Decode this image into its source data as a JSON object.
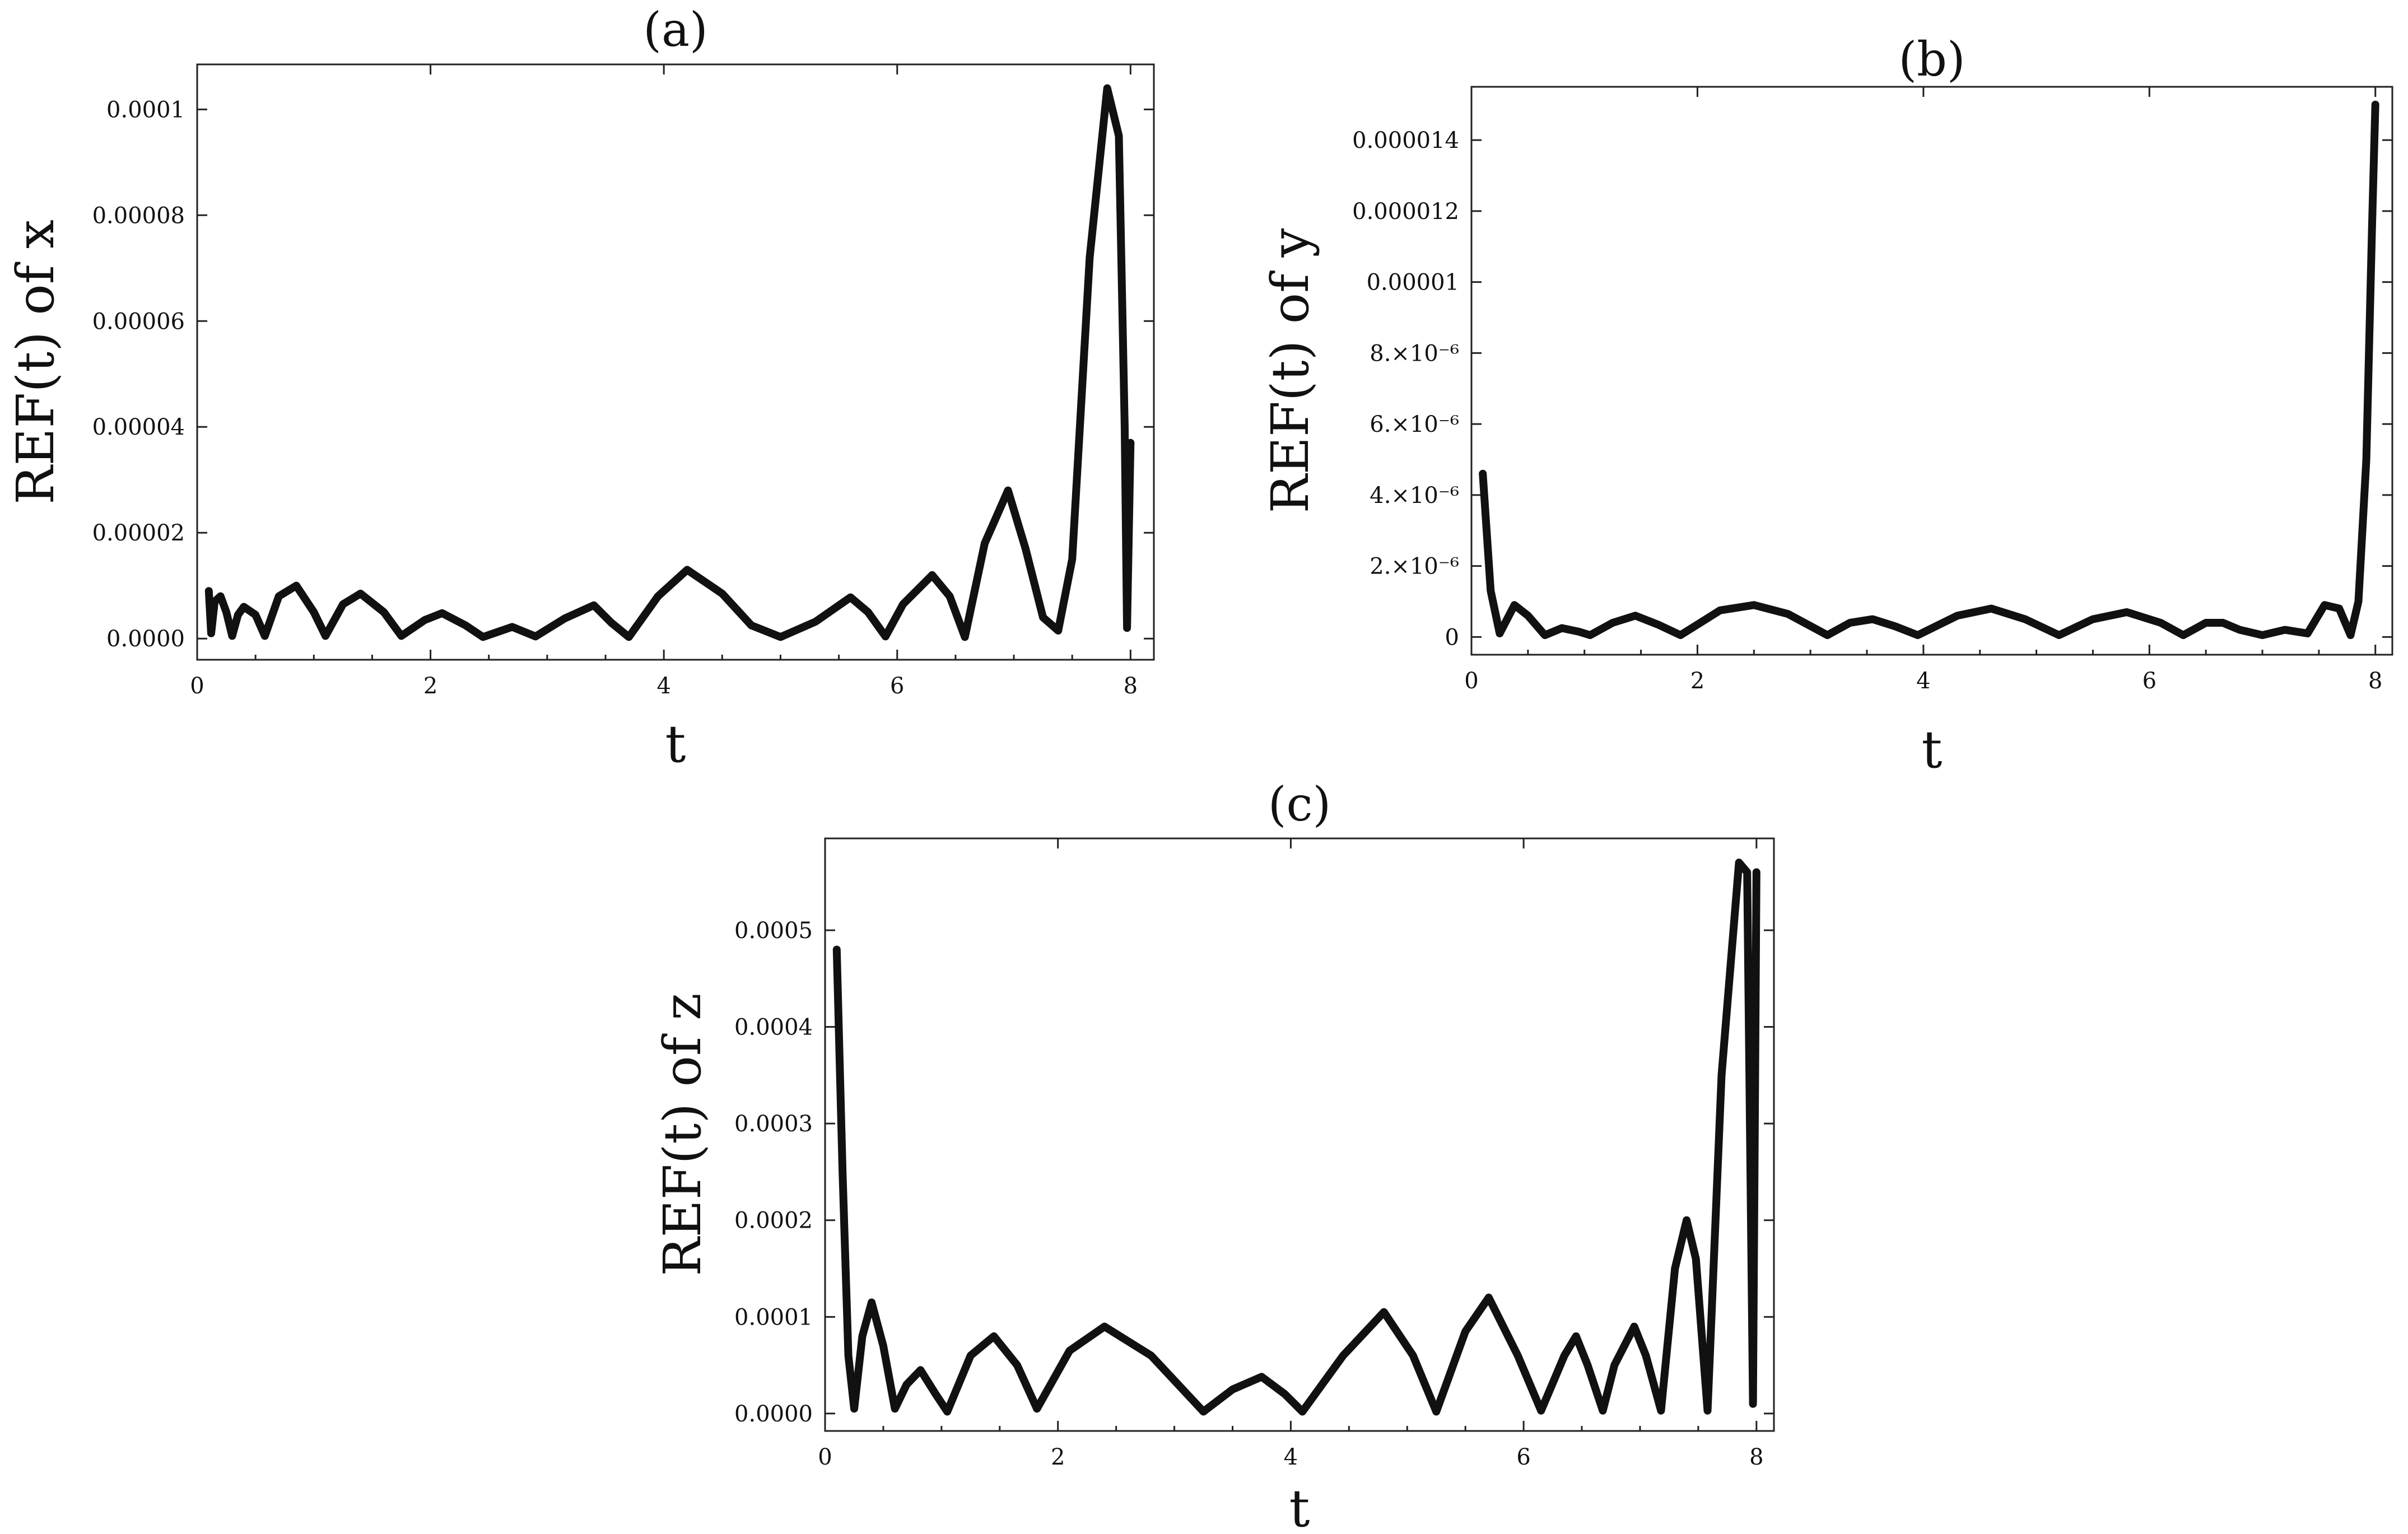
{
  "chart_data": [
    {
      "type": "line",
      "title": "(a)",
      "xlabel": "t",
      "ylabel": "REF(t) of x",
      "xlim": [
        0,
        8.2
      ],
      "ylim": [
        -4e-06,
        0.0001085
      ],
      "xticks": [
        {
          "value": 0,
          "label": "0"
        },
        {
          "value": 2,
          "label": "2"
        },
        {
          "value": 4,
          "label": "4"
        },
        {
          "value": 6,
          "label": "6"
        },
        {
          "value": 8,
          "label": "8"
        }
      ],
      "yticks": [
        {
          "value": 0,
          "label": "0.0000"
        },
        {
          "value": 2e-05,
          "label": "0.00002"
        },
        {
          "value": 4e-05,
          "label": "0.00004"
        },
        {
          "value": 6e-05,
          "label": "0.00006"
        },
        {
          "value": 8e-05,
          "label": "0.00008"
        },
        {
          "value": 0.0001,
          "label": "0.0001"
        }
      ],
      "grid": false,
      "series": [
        {
          "x": [
            0.1,
            0.12,
            0.15,
            0.2,
            0.25,
            0.3,
            0.35,
            0.4,
            0.5,
            0.58,
            0.7,
            0.85,
            1.0,
            1.1,
            1.25,
            1.4,
            1.6,
            1.75,
            1.95,
            2.1,
            2.3,
            2.45,
            2.7,
            2.9,
            3.15,
            3.4,
            3.55,
            3.7,
            3.95,
            4.2,
            4.5,
            4.75,
            5.0,
            5.3,
            5.6,
            5.75,
            5.9,
            6.05,
            6.3,
            6.45,
            6.58,
            6.75,
            6.95,
            7.1,
            7.25,
            7.38,
            7.5,
            7.65,
            7.8,
            7.9,
            7.95,
            7.97,
            8.0
          ],
          "y": [
            9e-06,
            1e-06,
            7e-06,
            8e-06,
            5e-06,
            5e-07,
            4.5e-06,
            6e-06,
            4.5e-06,
            5e-07,
            8e-06,
            1e-05,
            5e-06,
            5e-07,
            6.5e-06,
            8.5e-06,
            5e-06,
            5e-07,
            3.5e-06,
            4.8e-06,
            2.5e-06,
            3e-07,
            2.2e-06,
            4e-07,
            3.8e-06,
            6.3e-06,
            3e-06,
            3e-07,
            8e-06,
            1.3e-05,
            8.5e-06,
            2.5e-06,
            3e-07,
            3.2e-06,
            7.8e-06,
            5e-06,
            4e-07,
            6.5e-06,
            1.2e-05,
            8e-06,
            3e-07,
            1.8e-05,
            2.8e-05,
            1.7e-05,
            4e-06,
            1.5e-06,
            1.5e-05,
            7.2e-05,
            0.000104,
            9.5e-05,
            4e-05,
            2e-06,
            3.7e-05
          ]
        }
      ]
    },
    {
      "type": "line",
      "title": "(b)",
      "xlabel": "t",
      "ylabel": "REF(t) of y",
      "xlim": [
        0,
        8.15
      ],
      "ylim": [
        -5e-07,
        1.55e-05
      ],
      "xticks": [
        {
          "value": 0,
          "label": "0"
        },
        {
          "value": 2,
          "label": "2"
        },
        {
          "value": 4,
          "label": "4"
        },
        {
          "value": 6,
          "label": "6"
        },
        {
          "value": 8,
          "label": "8"
        }
      ],
      "yticks": [
        {
          "value": 0,
          "label": "0"
        },
        {
          "value": 2e-06,
          "label": "2.×10⁻⁶"
        },
        {
          "value": 4e-06,
          "label": "4.×10⁻⁶"
        },
        {
          "value": 6e-06,
          "label": "6.×10⁻⁶"
        },
        {
          "value": 8e-06,
          "label": "8.×10⁻⁶"
        },
        {
          "value": 1e-05,
          "label": "0.00001"
        },
        {
          "value": 1.2e-05,
          "label": "0.000012"
        },
        {
          "value": 1.4e-05,
          "label": "0.000014"
        }
      ],
      "grid": false,
      "series": [
        {
          "x": [
            0.1,
            0.17,
            0.25,
            0.38,
            0.5,
            0.65,
            0.8,
            0.95,
            1.05,
            1.25,
            1.45,
            1.65,
            1.85,
            2.2,
            2.5,
            2.8,
            3.15,
            3.35,
            3.55,
            3.75,
            3.95,
            4.3,
            4.6,
            4.9,
            5.2,
            5.5,
            5.8,
            6.1,
            6.3,
            6.5,
            6.65,
            6.8,
            7.0,
            7.2,
            7.4,
            7.55,
            7.68,
            7.78,
            7.85,
            7.92,
            7.97,
            8.0
          ],
          "y": [
            4.6e-06,
            1.3e-06,
            1e-07,
            9e-07,
            6e-07,
            5e-08,
            2.5e-07,
            1.5e-07,
            5e-08,
            4e-07,
            6e-07,
            3.5e-07,
            5e-08,
            7.5e-07,
            9e-07,
            6.5e-07,
            5e-08,
            4e-07,
            5e-07,
            3e-07,
            5e-08,
            6e-07,
            8e-07,
            5e-07,
            5e-08,
            5e-07,
            7e-07,
            4e-07,
            5e-08,
            4e-07,
            4e-07,
            2e-07,
            5e-08,
            2e-07,
            1e-07,
            9e-07,
            8e-07,
            5e-08,
            1e-06,
            5e-06,
            1.15e-05,
            1.5e-05
          ]
        }
      ]
    },
    {
      "type": "line",
      "title": "(c)",
      "xlabel": "t",
      "ylabel": "REF(t) of z",
      "xlim": [
        0,
        8.15
      ],
      "ylim": [
        -1.8e-05,
        0.000595
      ],
      "xticks": [
        {
          "value": 0,
          "label": "0"
        },
        {
          "value": 2,
          "label": "2"
        },
        {
          "value": 4,
          "label": "4"
        },
        {
          "value": 6,
          "label": "6"
        },
        {
          "value": 8,
          "label": "8"
        }
      ],
      "yticks": [
        {
          "value": 0,
          "label": "0.0000"
        },
        {
          "value": 0.0001,
          "label": "0.0001"
        },
        {
          "value": 0.0002,
          "label": "0.0002"
        },
        {
          "value": 0.0003,
          "label": "0.0003"
        },
        {
          "value": 0.0004,
          "label": "0.0004"
        },
        {
          "value": 0.0005,
          "label": "0.0005"
        }
      ],
      "grid": false,
      "series": [
        {
          "x": [
            0.1,
            0.15,
            0.2,
            0.25,
            0.32,
            0.4,
            0.5,
            0.6,
            0.7,
            0.82,
            0.95,
            1.05,
            1.25,
            1.45,
            1.65,
            1.82,
            2.1,
            2.4,
            2.8,
            3.25,
            3.5,
            3.75,
            3.95,
            4.1,
            4.45,
            4.8,
            5.05,
            5.25,
            5.5,
            5.7,
            5.95,
            6.15,
            6.35,
            6.45,
            6.55,
            6.68,
            6.78,
            6.95,
            7.05,
            7.18,
            7.3,
            7.4,
            7.48,
            7.58,
            7.7,
            7.85,
            7.92,
            7.97,
            8.0
          ],
          "y": [
            0.00048,
            0.00025,
            6e-05,
            5e-06,
            8e-05,
            0.000115,
            7e-05,
            5e-06,
            3e-05,
            4.5e-05,
            2e-05,
            2e-06,
            6e-05,
            8e-05,
            5e-05,
            5e-06,
            6.5e-05,
            9e-05,
            6e-05,
            2e-06,
            2.5e-05,
            3.8e-05,
            2e-05,
            2e-06,
            6e-05,
            0.000105,
            6e-05,
            2e-06,
            8.5e-05,
            0.00012,
            6e-05,
            3e-06,
            6e-05,
            8e-05,
            5e-05,
            3e-06,
            5e-05,
            9e-05,
            6e-05,
            3e-06,
            0.00015,
            0.0002,
            0.00016,
            3e-06,
            0.00035,
            0.00057,
            0.00056,
            1e-05,
            0.00056
          ]
        }
      ]
    }
  ]
}
